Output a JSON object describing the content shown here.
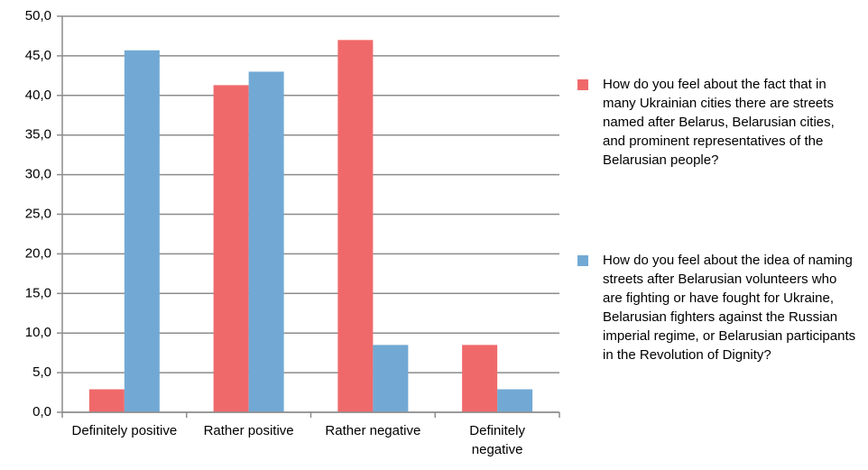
{
  "chart_data": {
    "type": "bar",
    "categories": [
      "Definitely positive",
      "Rather positive",
      "Rather negative",
      "Definitely negative"
    ],
    "series": [
      {
        "name": "How do you feel about the fact that in many Ukrainian cities there are streets named after Belarus, Belarusian cities, and prominent representatives of the Belarusian people?",
        "color": "#f0696a",
        "values": [
          2.9,
          41.3,
          47.0,
          8.5
        ]
      },
      {
        "name": "How do you feel about the idea of naming streets after Belarusian volunteers who are fighting or have fought for Ukraine, Belarusian fighters against the Russian imperial regime, or Belarusian participants in the Revolution of Dignity?",
        "color": "#72a9d4",
        "values": [
          45.7,
          43.0,
          8.5,
          2.9
        ]
      }
    ],
    "ylim": [
      0,
      50
    ],
    "yticks": [
      {
        "value": 0,
        "label": "0,0"
      },
      {
        "value": 5,
        "label": "5,0"
      },
      {
        "value": 10,
        "label": "10,0"
      },
      {
        "value": 15,
        "label": "15,0"
      },
      {
        "value": 20,
        "label": "20,0"
      },
      {
        "value": 25,
        "label": "25,0"
      },
      {
        "value": 30,
        "label": "30,0"
      },
      {
        "value": 35,
        "label": "35,0"
      },
      {
        "value": 40,
        "label": "40,0"
      },
      {
        "value": 45,
        "label": "45,0"
      },
      {
        "value": 50,
        "label": "50,0"
      }
    ],
    "grid": true,
    "legend": "right"
  }
}
